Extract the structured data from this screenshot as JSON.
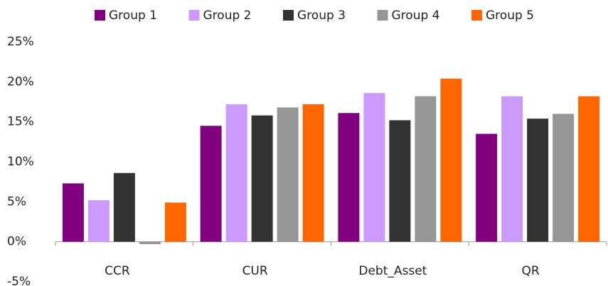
{
  "chart_data": {
    "type": "bar",
    "categories": [
      "CCR",
      "CUR",
      "Debt_Asset",
      "QR"
    ],
    "series": [
      {
        "name": "Group 1",
        "color": "#800080",
        "values": [
          7.3,
          14.5,
          16.1,
          13.5
        ]
      },
      {
        "name": "Group 2",
        "color": "#cc99ff",
        "values": [
          5.2,
          17.2,
          18.6,
          18.2
        ]
      },
      {
        "name": "Group 3",
        "color": "#333333",
        "values": [
          8.6,
          15.8,
          15.2,
          15.4
        ]
      },
      {
        "name": "Group 4",
        "color": "#969696",
        "values": [
          -0.3,
          16.8,
          18.2,
          16.0
        ]
      },
      {
        "name": "Group 5",
        "color": "#ff6600",
        "values": [
          4.9,
          17.2,
          20.4,
          18.2
        ]
      }
    ],
    "ylim": [
      -5,
      25
    ],
    "yticks": [
      {
        "value": -5,
        "label": "-5%"
      },
      {
        "value": 0,
        "label": "0%"
      },
      {
        "value": 5,
        "label": "5%"
      },
      {
        "value": 10,
        "label": "10%"
      },
      {
        "value": 15,
        "label": "15%"
      },
      {
        "value": 20,
        "label": "20%"
      },
      {
        "value": 25,
        "label": "25%"
      }
    ],
    "legend": "top",
    "grid": false
  }
}
